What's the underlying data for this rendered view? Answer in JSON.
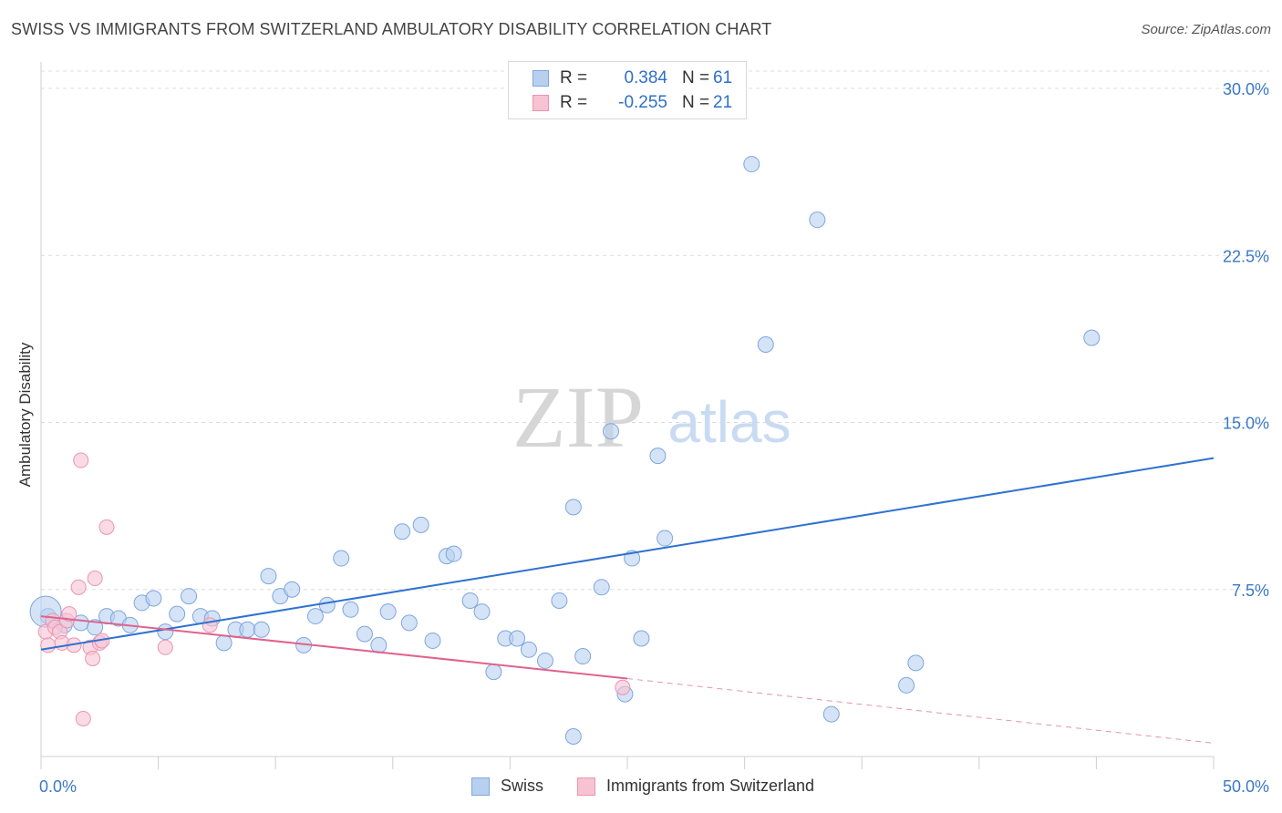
{
  "header": {
    "title": "SWISS VS IMMIGRANTS FROM SWITZERLAND AMBULATORY DISABILITY CORRELATION CHART",
    "source": "Source: ZipAtlas.com"
  },
  "watermark": {
    "zip": "ZIP",
    "atlas": "atlas"
  },
  "legend_top": {
    "rows": [
      {
        "r_label": "R =",
        "r_value": "0.384",
        "n_label": "N =",
        "n_value": "61"
      },
      {
        "r_label": "R =",
        "r_value": "-0.255",
        "n_label": "N =",
        "n_value": "21"
      }
    ]
  },
  "colors": {
    "swiss_fill": "#b8d0f0",
    "swiss_stroke": "#7fa6de",
    "swiss_line": "#2f72d0",
    "imm_fill": "#f7c3d3",
    "imm_stroke": "#ea94b0",
    "imm_line": "#e0628c",
    "tick_label": "#3b78c8",
    "grid": "#dcdcdc"
  },
  "chart_data": {
    "type": "scatter",
    "title": "SWISS VS IMMIGRANTS FROM SWITZERLAND AMBULATORY DISABILITY CORRELATION CHART",
    "xlabel": "",
    "ylabel": "Ambulatory Disability",
    "xlim": [
      0,
      50
    ],
    "ylim": [
      0,
      30
    ],
    "x_tick_labels": [
      "0.0%",
      "50.0%"
    ],
    "y_ticks": [
      7.5,
      15.0,
      22.5,
      30.0
    ],
    "y_tick_labels": [
      "7.5%",
      "15.0%",
      "22.5%",
      "30.0%"
    ],
    "grid": true,
    "legend_placement": "bottom",
    "series": [
      {
        "name": "Swiss",
        "r": 0.384,
        "n": 61,
        "trend": {
          "x": [
            0,
            50
          ],
          "y": [
            4.8,
            13.4
          ]
        },
        "points": [
          [
            0.3,
            6.3
          ],
          [
            1.0,
            5.9
          ],
          [
            1.7,
            6.0
          ],
          [
            2.3,
            5.8
          ],
          [
            2.8,
            6.3
          ],
          [
            3.3,
            6.2
          ],
          [
            3.8,
            5.9
          ],
          [
            4.3,
            6.9
          ],
          [
            4.8,
            7.1
          ],
          [
            5.3,
            5.6
          ],
          [
            5.8,
            6.4
          ],
          [
            6.3,
            7.2
          ],
          [
            6.8,
            6.3
          ],
          [
            7.3,
            6.2
          ],
          [
            7.8,
            5.1
          ],
          [
            8.3,
            5.7
          ],
          [
            8.8,
            5.7
          ],
          [
            9.4,
            5.7
          ],
          [
            9.7,
            8.1
          ],
          [
            10.2,
            7.2
          ],
          [
            10.7,
            7.5
          ],
          [
            11.2,
            5.0
          ],
          [
            11.7,
            6.3
          ],
          [
            12.2,
            6.8
          ],
          [
            12.8,
            8.9
          ],
          [
            13.2,
            6.6
          ],
          [
            13.8,
            5.5
          ],
          [
            14.4,
            5.0
          ],
          [
            14.8,
            6.5
          ],
          [
            15.4,
            10.1
          ],
          [
            15.7,
            6.0
          ],
          [
            16.2,
            10.4
          ],
          [
            16.7,
            5.2
          ],
          [
            17.3,
            9.0
          ],
          [
            17.6,
            9.1
          ],
          [
            18.3,
            7.0
          ],
          [
            18.8,
            6.5
          ],
          [
            19.3,
            3.8
          ],
          [
            19.8,
            5.3
          ],
          [
            20.3,
            5.3
          ],
          [
            20.8,
            4.8
          ],
          [
            21.5,
            4.3
          ],
          [
            22.1,
            7.0
          ],
          [
            22.7,
            11.2
          ],
          [
            22.7,
            0.9
          ],
          [
            23.1,
            4.5
          ],
          [
            23.9,
            7.6
          ],
          [
            24.3,
            14.6
          ],
          [
            24.9,
            2.8
          ],
          [
            25.2,
            8.9
          ],
          [
            25.6,
            5.3
          ],
          [
            26.3,
            13.5
          ],
          [
            26.6,
            9.8
          ],
          [
            30.3,
            26.6
          ],
          [
            30.9,
            18.5
          ],
          [
            33.1,
            24.1
          ],
          [
            33.7,
            1.9
          ],
          [
            36.9,
            3.2
          ],
          [
            37.3,
            4.2
          ],
          [
            44.8,
            18.8
          ],
          [
            0.2,
            6.5
          ]
        ]
      },
      {
        "name": "Immigrants from Switzerland",
        "r": -0.255,
        "n": 21,
        "trend": {
          "x": [
            0,
            25
          ],
          "y": [
            6.3,
            3.5
          ]
        },
        "trend_dashed": {
          "x": [
            25,
            50
          ],
          "y": [
            3.5,
            0.6
          ]
        },
        "points": [
          [
            0.2,
            5.6
          ],
          [
            0.3,
            5.0
          ],
          [
            0.5,
            6.1
          ],
          [
            0.6,
            5.8
          ],
          [
            0.8,
            5.6
          ],
          [
            0.9,
            5.1
          ],
          [
            1.1,
            6.1
          ],
          [
            1.2,
            6.4
          ],
          [
            1.4,
            5.0
          ],
          [
            1.6,
            7.6
          ],
          [
            1.7,
            13.3
          ],
          [
            1.8,
            1.7
          ],
          [
            2.1,
            4.9
          ],
          [
            2.2,
            4.4
          ],
          [
            2.3,
            8.0
          ],
          [
            2.5,
            5.1
          ],
          [
            2.6,
            5.2
          ],
          [
            2.8,
            10.3
          ],
          [
            5.3,
            4.9
          ],
          [
            7.2,
            5.9
          ],
          [
            24.8,
            3.1
          ]
        ]
      }
    ]
  }
}
